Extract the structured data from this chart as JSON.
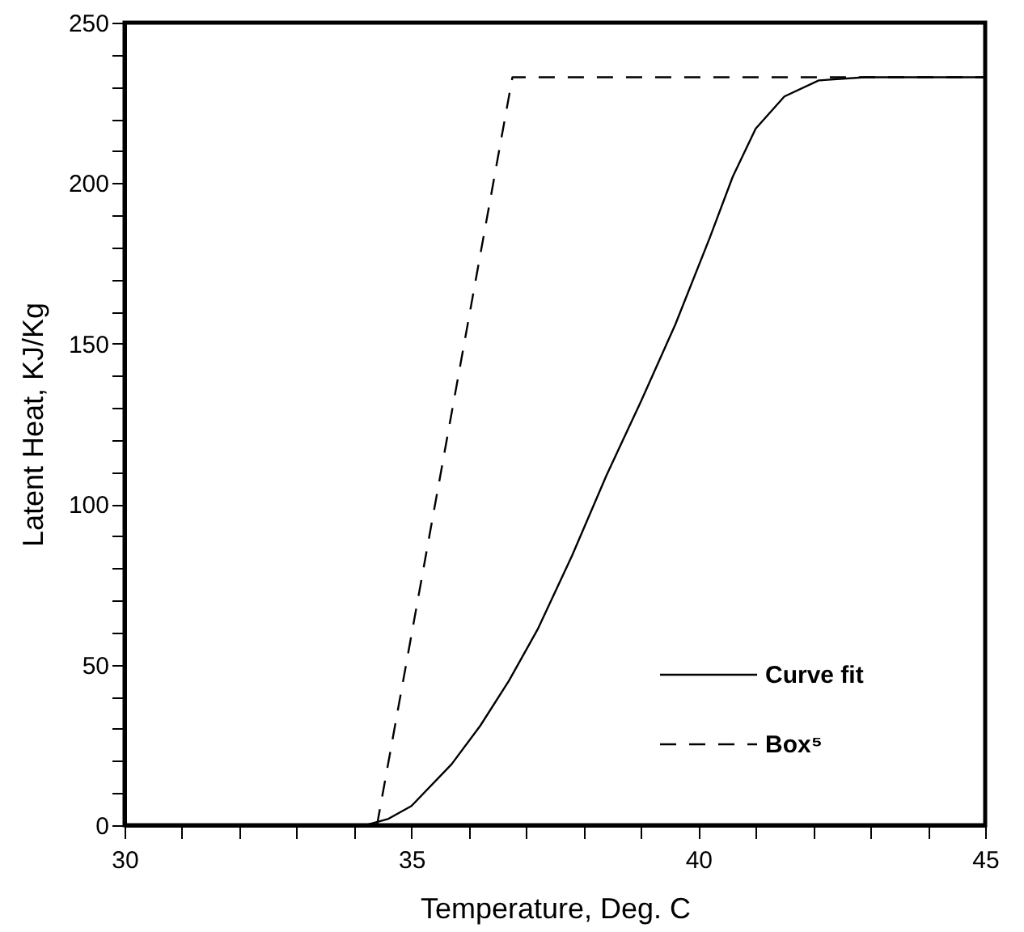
{
  "chart_data": {
    "type": "line",
    "xlabel": "Temperature, Deg. C",
    "ylabel": "Latent Heat, KJ/Kg",
    "xlim": [
      30,
      45
    ],
    "ylim": [
      0,
      250
    ],
    "xticks": [
      30,
      {
        "value": 31,
        "label": null
      },
      {
        "value": 32,
        "label": null
      },
      {
        "value": 33,
        "label": null
      },
      {
        "value": 34,
        "label": null
      },
      35,
      {
        "value": 36,
        "label": null
      },
      {
        "value": 37,
        "label": null
      },
      {
        "value": 38,
        "label": null
      },
      {
        "value": 39,
        "label": null
      },
      40,
      {
        "value": 41,
        "label": null
      },
      {
        "value": 42,
        "label": null
      },
      {
        "value": 43,
        "label": null
      },
      {
        "value": 44,
        "label": null
      },
      45
    ],
    "yticks": [
      0,
      {
        "value": 10,
        "label": null
      },
      {
        "value": 20,
        "label": null
      },
      {
        "value": 30,
        "label": null
      },
      {
        "value": 40,
        "label": null
      },
      50,
      {
        "value": 60,
        "label": null
      },
      {
        "value": 70,
        "label": null
      },
      {
        "value": 80,
        "label": null
      },
      {
        "value": 90,
        "label": null
      },
      100,
      {
        "value": 110,
        "label": null
      },
      {
        "value": 120,
        "label": null
      },
      {
        "value": 130,
        "label": null
      },
      {
        "value": 140,
        "label": null
      },
      150,
      {
        "value": 160,
        "label": null
      },
      {
        "value": 170,
        "label": null
      },
      {
        "value": 180,
        "label": null
      },
      {
        "value": 190,
        "label": null
      },
      200,
      {
        "value": 210,
        "label": null
      },
      {
        "value": 220,
        "label": null
      },
      {
        "value": 230,
        "label": null
      },
      {
        "value": 240,
        "label": null
      },
      250
    ],
    "grid": false,
    "legend": "bottom right",
    "marker": "none",
    "series": [
      {
        "name": "Curve fit",
        "color": "#000000",
        "line_style": "solid",
        "x": [
          34.2,
          34.6,
          35.0,
          35.7,
          36.2,
          36.7,
          37.2,
          37.8,
          38.4,
          39.0,
          39.6,
          40.2,
          40.6,
          41.0,
          41.5,
          42.1,
          42.9,
          45.0
        ],
        "values": [
          0,
          2,
          6,
          19,
          31,
          45,
          61,
          84,
          109,
          132,
          156,
          183,
          202,
          217,
          227,
          232,
          233,
          233
        ]
      },
      {
        "name": "Box⁵",
        "color": "#000000",
        "line_style": "dashed",
        "x": [
          34.4,
          36.76,
          45.0
        ],
        "values": [
          0,
          233,
          233
        ]
      }
    ]
  }
}
